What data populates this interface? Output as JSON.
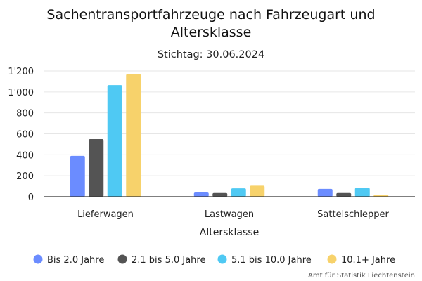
{
  "chart_data": {
    "type": "bar",
    "title": "Sachentransportfahrzeuge nach Fahrzeugart und Altersklasse",
    "subtitle": "Stichtag: 30.06.2024",
    "xlabel": "Altersklasse",
    "ylabel": "",
    "categories": [
      "Lieferwagen",
      "Lastwagen",
      "Sattelschlepper"
    ],
    "series": [
      {
        "name": "Bis 2.0 Jahre",
        "color": "#6b8cff",
        "values": [
          390,
          40,
          75
        ]
      },
      {
        "name": "2.1 bis 5.0 Jahre",
        "color": "#545454",
        "values": [
          550,
          35,
          35
        ]
      },
      {
        "name": "5.1 bis 10.0 Jahre",
        "color": "#4fc9f3",
        "values": [
          1065,
          80,
          85
        ]
      },
      {
        "name": "10.1+ Jahre",
        "color": "#f7d26b",
        "values": [
          1170,
          105,
          15
        ]
      }
    ],
    "ylim": [
      0,
      1200
    ],
    "yticks": [
      0,
      200,
      400,
      600,
      800,
      1000,
      1200
    ],
    "ytick_labels": [
      "0",
      "200",
      "400",
      "600",
      "800",
      "1'000",
      "1'200"
    ],
    "grid": true,
    "legend_position": "bottom"
  },
  "credit": "Amt für Statistik Liechtenstein"
}
